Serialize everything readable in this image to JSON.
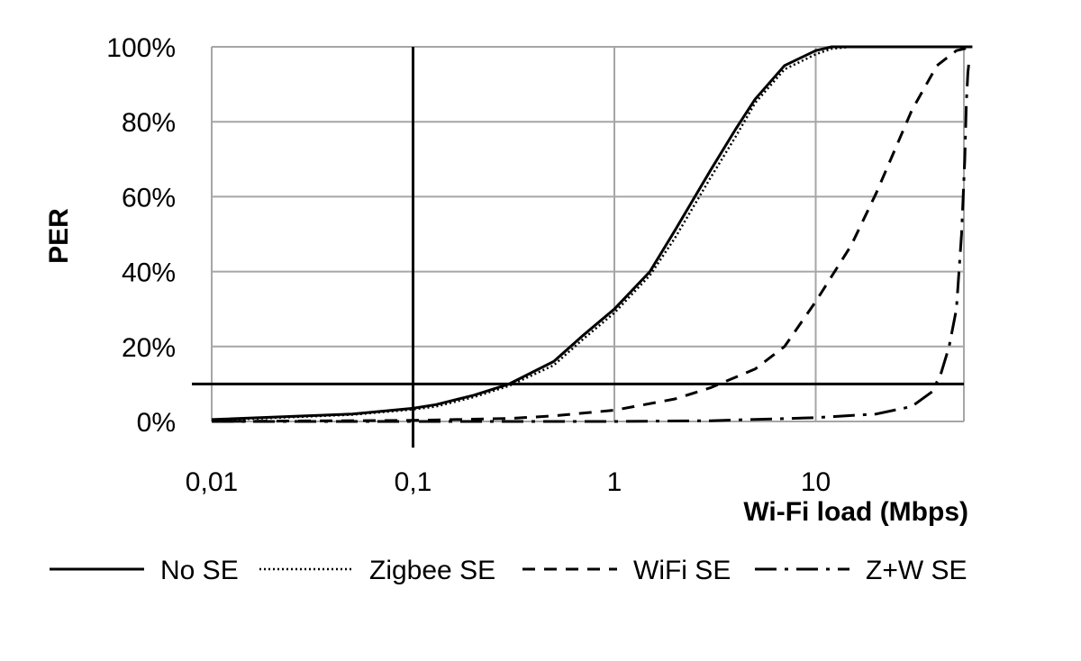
{
  "chart_data": {
    "type": "line",
    "title": "",
    "xlabel": "Wi-Fi load (Mbps)",
    "ylabel": "PER",
    "x_scale": "log",
    "xlim": [
      0.01,
      60
    ],
    "ylim": [
      0,
      100
    ],
    "x_ticks": [
      0.01,
      0.1,
      1,
      10
    ],
    "x_tick_labels": [
      "0,01",
      "0,1",
      "1",
      "10"
    ],
    "y_ticks": [
      0,
      20,
      40,
      60,
      80,
      100
    ],
    "y_tick_labels": [
      "0%",
      "20%",
      "40%",
      "60%",
      "80%",
      "100%"
    ],
    "grid": true,
    "legend_position": "bottom",
    "reference_lines": [
      {
        "orientation": "vertical",
        "x": 0.1
      },
      {
        "orientation": "horizontal",
        "y": 10
      }
    ],
    "series": [
      {
        "name": "No SE",
        "style": "solid",
        "x": [
          0.01,
          0.05,
          0.1,
          0.13,
          0.2,
          0.3,
          0.5,
          0.7,
          1,
          1.5,
          2,
          3,
          4,
          5,
          7,
          10,
          12,
          15,
          60
        ],
        "y": [
          0.5,
          2,
          3.5,
          4.5,
          7,
          10,
          16,
          23,
          30,
          40,
          51,
          67,
          78,
          86,
          95,
          99,
          100,
          100,
          100
        ]
      },
      {
        "name": "Zigbee SE",
        "style": "dotted",
        "x": [
          0.01,
          0.05,
          0.1,
          0.13,
          0.2,
          0.3,
          0.5,
          0.7,
          1,
          1.5,
          2,
          3,
          4,
          5,
          7,
          10,
          12,
          15,
          60
        ],
        "y": [
          0.3,
          1.8,
          3.2,
          4,
          6.5,
          9.5,
          15,
          22,
          29,
          39,
          49,
          65,
          76,
          85,
          94,
          98,
          99.5,
          100,
          100
        ]
      },
      {
        "name": "WiFi SE",
        "style": "dashed",
        "x": [
          0.01,
          0.1,
          0.3,
          0.5,
          1,
          2,
          3,
          5,
          7,
          10,
          15,
          20,
          30,
          40,
          50,
          60
        ],
        "y": [
          0,
          0.3,
          0.8,
          1.5,
          3,
          6,
          9,
          14,
          20,
          32,
          47,
          61,
          83,
          95,
          99,
          100
        ]
      },
      {
        "name": "Z+W SE",
        "style": "dashdot",
        "x": [
          0.01,
          0.1,
          1,
          3,
          10,
          20,
          30,
          38,
          42,
          46,
          50,
          53,
          55,
          56,
          57,
          58
        ],
        "y": [
          0,
          0,
          0,
          0.2,
          1,
          2,
          4,
          8,
          13,
          20,
          30,
          50,
          70,
          85,
          93,
          97
        ]
      }
    ]
  },
  "colors": {
    "grid": "#a6a6a6",
    "line": "#000000",
    "background": "#ffffff"
  }
}
